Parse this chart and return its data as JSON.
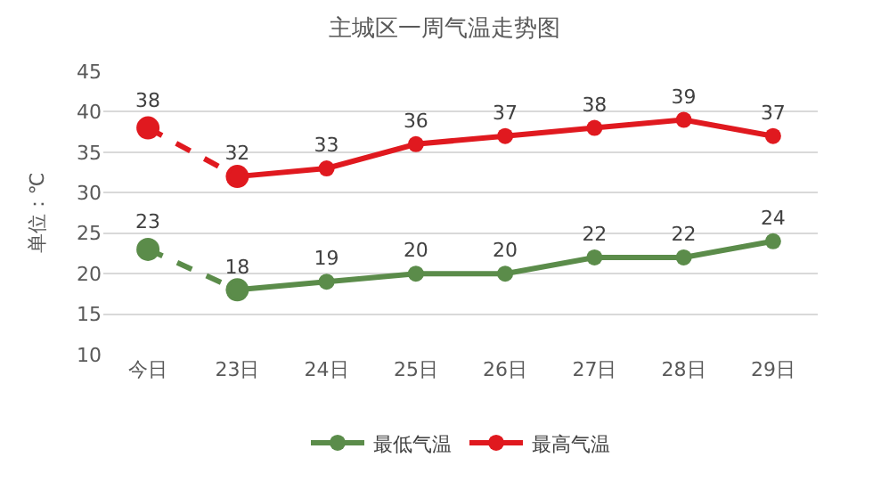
{
  "chart_data": {
    "type": "line",
    "title": "主城区一周气温走势图",
    "ylabel": "单位：℃",
    "categories": [
      "今日",
      "23日",
      "24日",
      "25日",
      "26日",
      "27日",
      "28日",
      "29日"
    ],
    "ylim": [
      10,
      45
    ],
    "yticks": [
      10,
      15,
      20,
      25,
      30,
      35,
      40,
      45
    ],
    "grid": "y",
    "legend": "bottom",
    "marker": "circle",
    "series": [
      {
        "name": "最低气温",
        "color": "#5b8c4a",
        "line_style": "solid",
        "values": [
          null,
          18,
          19,
          20,
          20,
          22,
          22,
          24
        ],
        "value_labels": [
          null,
          "18",
          "19",
          "20",
          "20",
          "22",
          "22",
          "24"
        ]
      },
      {
        "name": "最高气温",
        "color": "#e0191f",
        "line_style": "solid",
        "values": [
          null,
          32,
          33,
          36,
          37,
          38,
          39,
          37
        ],
        "value_labels": [
          null,
          "32",
          "33",
          "36",
          "37",
          "38",
          "39",
          "37"
        ]
      },
      {
        "color": "#5b8c4a",
        "line_style": "dashed",
        "values": [
          23,
          18,
          null,
          null,
          null,
          null,
          null,
          null
        ],
        "value_labels": [
          "23",
          null,
          null,
          null,
          null,
          null,
          null,
          null
        ]
      },
      {
        "color": "#e0191f",
        "line_style": "dashed",
        "values": [
          38,
          32,
          null,
          null,
          null,
          null,
          null,
          null
        ],
        "value_labels": [
          "38",
          null,
          null,
          null,
          null,
          null,
          null,
          null
        ]
      }
    ]
  }
}
